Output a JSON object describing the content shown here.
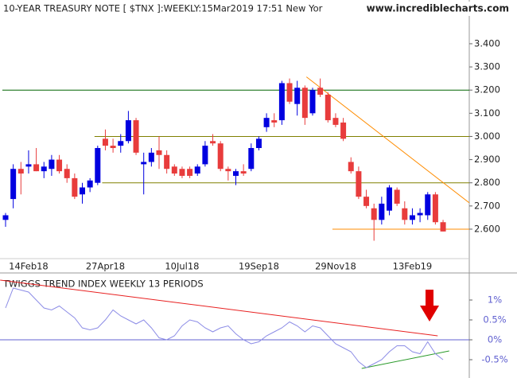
{
  "chart_data": [
    {
      "type": "candlestick",
      "title": "10-YEAR TREASURY NOTE [ $TNX ]:WEEKLY:15Mar2019 17:51 New Yor",
      "watermark": "www.incrediblecharts.com",
      "categories": [
        null,
        null,
        null,
        "14Feb18",
        null,
        null,
        null,
        null,
        null,
        null,
        null,
        null,
        null,
        "27Apr18",
        null,
        null,
        null,
        null,
        null,
        null,
        null,
        null,
        null,
        "10Jul18",
        null,
        null,
        null,
        null,
        null,
        null,
        null,
        null,
        null,
        "19Sep18",
        null,
        null,
        null,
        null,
        null,
        null,
        null,
        null,
        null,
        "29Nov18",
        null,
        null,
        null,
        null,
        null,
        null,
        null,
        null,
        null,
        "13Feb19",
        null,
        null,
        null,
        null
      ],
      "open": [
        2.64,
        2.73,
        2.86,
        2.87,
        2.88,
        2.85,
        2.86,
        2.9,
        2.86,
        2.82,
        2.75,
        2.78,
        2.8,
        2.99,
        2.96,
        2.96,
        2.98,
        3.07,
        2.88,
        2.89,
        2.94,
        2.92,
        2.87,
        2.86,
        2.86,
        2.84,
        2.88,
        2.98,
        2.97,
        2.86,
        2.83,
        2.85,
        2.86,
        2.95,
        3.04,
        3.07,
        3.07,
        3.23,
        3.14,
        3.21,
        3.1,
        3.21,
        3.18,
        3.08,
        3.06,
        2.89,
        2.85,
        2.74,
        2.69,
        2.64,
        2.68,
        2.77,
        2.69,
        2.64,
        2.66,
        2.66,
        2.75,
        2.63
      ],
      "high": [
        2.67,
        2.88,
        2.89,
        2.94,
        2.95,
        2.89,
        2.92,
        2.92,
        2.88,
        2.84,
        2.8,
        2.82,
        2.96,
        3.03,
        2.99,
        3.01,
        3.11,
        3.08,
        2.93,
        2.95,
        3.0,
        2.94,
        2.88,
        2.87,
        2.87,
        2.88,
        2.98,
        3.01,
        2.98,
        2.87,
        2.86,
        2.88,
        2.97,
        3.0,
        3.1,
        3.1,
        3.24,
        3.25,
        3.24,
        3.22,
        3.21,
        3.25,
        3.19,
        3.1,
        3.08,
        2.91,
        2.87,
        2.77,
        2.71,
        2.74,
        2.79,
        2.78,
        2.72,
        2.69,
        2.69,
        2.76,
        2.76,
        2.64
      ],
      "low": [
        2.61,
        2.69,
        2.75,
        2.84,
        2.85,
        2.82,
        2.83,
        2.84,
        2.8,
        2.73,
        2.71,
        2.76,
        2.79,
        2.94,
        2.93,
        2.93,
        2.97,
        2.92,
        2.75,
        2.87,
        2.86,
        2.84,
        2.83,
        2.82,
        2.82,
        2.83,
        2.87,
        2.96,
        2.85,
        2.81,
        2.79,
        2.83,
        2.85,
        2.94,
        3.02,
        3.04,
        3.05,
        3.14,
        3.09,
        3.05,
        3.09,
        3.17,
        3.06,
        3.04,
        2.98,
        2.84,
        2.73,
        2.69,
        2.55,
        2.62,
        2.66,
        2.7,
        2.62,
        2.62,
        2.63,
        2.64,
        2.62,
        2.59
      ],
      "close": [
        2.66,
        2.86,
        2.84,
        2.88,
        2.85,
        2.87,
        2.9,
        2.85,
        2.82,
        2.74,
        2.78,
        2.81,
        2.95,
        2.96,
        2.95,
        2.98,
        3.07,
        2.93,
        2.89,
        2.93,
        2.92,
        2.86,
        2.84,
        2.83,
        2.83,
        2.87,
        2.96,
        2.97,
        2.86,
        2.85,
        2.85,
        2.84,
        2.95,
        2.99,
        3.08,
        3.06,
        3.23,
        3.15,
        3.21,
        3.08,
        3.2,
        3.18,
        3.07,
        3.05,
        2.99,
        2.85,
        2.74,
        2.7,
        2.64,
        2.71,
        2.78,
        2.71,
        2.64,
        2.66,
        2.67,
        2.75,
        2.63,
        2.59
      ],
      "up_color": "#0000e0",
      "down_color": "#e83c3c",
      "ylim": [
        2.49,
        3.52
      ],
      "yticks": [
        {
          "value": 2.6,
          "label": "2.600"
        },
        {
          "value": 2.7,
          "label": "2.700"
        },
        {
          "value": 2.8,
          "label": "2.800"
        },
        {
          "value": 2.9,
          "label": "2.900"
        },
        {
          "value": 3.0,
          "label": "3.000"
        },
        {
          "value": 3.1,
          "label": "3.100"
        },
        {
          "value": 3.2,
          "label": "3.200"
        },
        {
          "value": 3.3,
          "label": "3.300"
        },
        {
          "value": 3.4,
          "label": "3.400"
        }
      ],
      "levels": [
        {
          "value": 3.2,
          "start": 0,
          "color": "#006400"
        },
        {
          "value": 3.0,
          "start": 12,
          "color": "#808000"
        },
        {
          "value": 2.8,
          "start": 13,
          "color": "#808000"
        },
        {
          "value": 2.6,
          "start": 43,
          "color": "#ff8c00"
        }
      ],
      "trendlines": [
        {
          "color": "#ff8c00",
          "x": [
            39.2,
            60.4
          ],
          "y": [
            3.257,
            2.714
          ]
        }
      ]
    },
    {
      "type": "line",
      "title": "TWIGGS TREND INDEX WEEKLY 13 PERIODS",
      "values": [
        0.8,
        1.3,
        1.25,
        1.2,
        1.0,
        0.8,
        0.75,
        0.85,
        0.7,
        0.55,
        0.3,
        0.25,
        0.3,
        0.5,
        0.75,
        0.6,
        0.5,
        0.4,
        0.5,
        0.3,
        0.05,
        0.0,
        0.1,
        0.35,
        0.5,
        0.45,
        0.3,
        0.2,
        0.3,
        0.35,
        0.15,
        0.0,
        -0.1,
        -0.05,
        0.1,
        0.2,
        0.3,
        0.45,
        0.35,
        0.2,
        0.35,
        0.3,
        0.1,
        -0.1,
        -0.2,
        -0.3,
        -0.55,
        -0.7,
        -0.6,
        -0.5,
        -0.3,
        -0.15,
        -0.15,
        -0.3,
        -0.35,
        -0.05,
        -0.35,
        -0.5
      ],
      "color": "#8c8ce6",
      "ylim": [
        -0.96,
        1.58
      ],
      "yticks": [
        {
          "value": 1,
          "label": "1%"
        },
        {
          "value": 0.5,
          "label": "0.5%"
        },
        {
          "value": 0,
          "label": "0%"
        },
        {
          "value": -0.5,
          "label": "-0.5%"
        }
      ],
      "zero_color": "#6060d0",
      "trendlines": [
        {
          "color": "#e82020",
          "x": [
            -0.7,
            56.3
          ],
          "y": [
            1.5,
            0.1
          ]
        },
        {
          "color": "#2a9a2a",
          "x": [
            46.4,
            57.8
          ],
          "y": [
            -0.72,
            -0.28
          ]
        }
      ]
    }
  ]
}
